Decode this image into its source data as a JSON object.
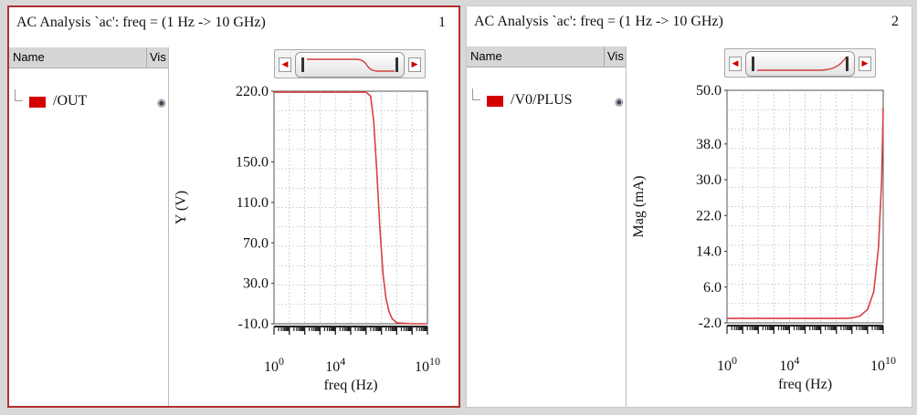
{
  "panels": [
    {
      "title": "AC Analysis `ac': freq = (1 Hz -> 10 GHz)",
      "number": "1",
      "browser": {
        "col_name": "Name",
        "col_vis": "Vis",
        "signal": "/OUT",
        "signal_color": "#d40000"
      },
      "xlabel": "freq (Hz)",
      "ylabel": "Y (V)"
    },
    {
      "title": "AC Analysis `ac': freq = (1 Hz -> 10 GHz)",
      "number": "2",
      "browser": {
        "col_name": "Name",
        "col_vis": "Vis",
        "signal": "/V0/PLUS",
        "signal_color": "#d40000"
      },
      "xlabel": "freq (Hz)",
      "ylabel": "Mag (mA)"
    }
  ],
  "chart_data": [
    {
      "type": "line",
      "xscale": "log",
      "xlim": [
        1,
        10000000000
      ],
      "ylim": [
        -10,
        220
      ],
      "xticks": [
        1,
        10000,
        10000000000
      ],
      "xtick_labels": [
        [
          "10",
          "0"
        ],
        [
          "10",
          "4"
        ],
        [
          "10",
          "10"
        ]
      ],
      "yticks": [
        220.0,
        150.0,
        110.0,
        70.0,
        30.0,
        -10.0
      ],
      "ytick_labels": [
        "220.0",
        "150.0",
        "110.0",
        "70.0",
        "30.0",
        "-10.0"
      ],
      "grid": true,
      "line_color": "#d94040",
      "series": [
        {
          "name": "/OUT",
          "x": [
            1,
            100,
            10000,
            100000,
            1000000,
            1995000,
            3162000,
            5012000,
            7943000,
            12590000,
            19950000,
            31620000,
            50120000,
            100000000,
            1000000000,
            10000000000
          ],
          "y": [
            219,
            219,
            219,
            219,
            219,
            215,
            190,
            140,
            85,
            40,
            15,
            2,
            -5,
            -9,
            -10,
            -10
          ]
        }
      ]
    },
    {
      "type": "line",
      "xscale": "log",
      "xlim": [
        1,
        10000000000
      ],
      "ylim": [
        -2,
        50
      ],
      "xticks": [
        1,
        10000,
        10000000000
      ],
      "xtick_labels": [
        [
          "10",
          "0"
        ],
        [
          "10",
          "4"
        ],
        [
          "10",
          "10"
        ]
      ],
      "yticks": [
        50.0,
        38.0,
        30.0,
        22.0,
        14.0,
        6.0,
        -2.0
      ],
      "ytick_labels": [
        "50.0",
        "38.0",
        "30.0",
        "22.0",
        "14.0",
        "6.0",
        "-2.0"
      ],
      "grid": true,
      "line_color": "#d94040",
      "series": [
        {
          "name": "/V0/PLUS",
          "x": [
            1,
            10000,
            1000000,
            50000000,
            100000000,
            316200000,
            1000000000,
            2512000000,
            5012000000,
            7943000000,
            10000000000
          ],
          "y": [
            -1,
            -1,
            -1,
            -1,
            -0.9,
            -0.5,
            1,
            5,
            15,
            30,
            46
          ]
        }
      ]
    }
  ]
}
